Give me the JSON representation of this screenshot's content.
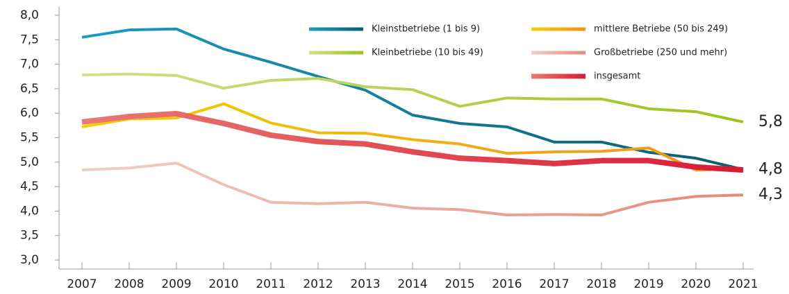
{
  "chart_data": {
    "type": "line",
    "categories": [
      "2007",
      "2008",
      "2009",
      "2010",
      "2011",
      "2012",
      "2013",
      "2014",
      "2015",
      "2016",
      "2017",
      "2018",
      "2019",
      "2020",
      "2021"
    ],
    "ylim": [
      3,
      8
    ],
    "yticks": [
      {
        "value": 3,
        "label": "3,0"
      },
      {
        "value": 3.5,
        "label": "3,5"
      },
      {
        "value": 4,
        "label": "4,0"
      },
      {
        "value": 4.5,
        "label": "4,5"
      },
      {
        "value": 5,
        "label": "5,0"
      },
      {
        "value": 5.5,
        "label": "5,5"
      },
      {
        "value": 6,
        "label": "6,0"
      },
      {
        "value": 6.5,
        "label": "6,5"
      },
      {
        "value": 7,
        "label": "7,0"
      },
      {
        "value": 7.5,
        "label": "7,5"
      },
      {
        "value": 8,
        "label": "8,0"
      }
    ],
    "series": [
      {
        "name": "Kleinstbetriebe (1 bis 9)",
        "colors": [
          "#1a9bc4",
          "#0b5e6b"
        ],
        "width": 4,
        "values": [
          7.55,
          7.7,
          7.72,
          7.31,
          7.04,
          6.75,
          6.47,
          5.96,
          5.79,
          5.72,
          5.41,
          5.41,
          5.2,
          5.08,
          4.85
        ]
      },
      {
        "name": "mittlere Betriebe (50 bis 249)",
        "colors": [
          "#f2d000",
          "#f0921e"
        ],
        "width": 4,
        "values": [
          5.72,
          5.88,
          5.9,
          6.19,
          5.8,
          5.6,
          5.59,
          5.46,
          5.37,
          5.18,
          5.21,
          5.22,
          5.29,
          4.84,
          4.86
        ]
      },
      {
        "name": "Kleinbetriebe (10 bis 49)",
        "colors": [
          "#d3e08a",
          "#9cc21a"
        ],
        "width": 4,
        "values": [
          6.78,
          6.8,
          6.77,
          6.51,
          6.67,
          6.71,
          6.54,
          6.48,
          6.14,
          6.31,
          6.29,
          6.29,
          6.09,
          6.03,
          5.82
        ]
      },
      {
        "name": "Großbetriebe (250 und mehr)",
        "colors": [
          "#f0cfc6",
          "#e5897a"
        ],
        "width": 4,
        "values": [
          4.84,
          4.88,
          4.98,
          4.54,
          4.18,
          4.15,
          4.18,
          4.06,
          4.03,
          3.92,
          3.93,
          3.92,
          4.18,
          4.3,
          4.33
        ]
      },
      {
        "name": "insgesamt",
        "colors": [
          "#e97a72",
          "#d81b35"
        ],
        "width": 8,
        "values": [
          5.82,
          5.93,
          5.99,
          5.79,
          5.55,
          5.42,
          5.37,
          5.21,
          5.08,
          5.03,
          4.97,
          5.03,
          5.03,
          4.9,
          4.84
        ]
      }
    ],
    "annotations": [
      {
        "text": "5,8",
        "series": 2
      },
      {
        "text": "4,8",
        "series": 0
      },
      {
        "text": "4,3",
        "series": 3
      }
    ]
  }
}
